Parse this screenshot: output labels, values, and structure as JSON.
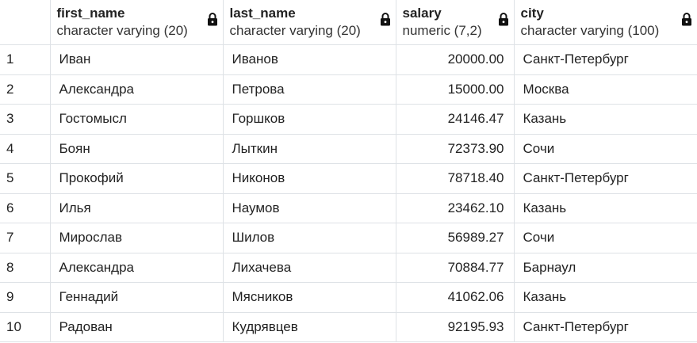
{
  "columns": [
    {
      "name": "first_name",
      "type": "character varying (20)"
    },
    {
      "name": "last_name",
      "type": "character varying (20)"
    },
    {
      "name": "salary",
      "type": "numeric (7,2)"
    },
    {
      "name": "city",
      "type": "character varying (100)"
    }
  ],
  "icons": {
    "column_header": "lock-icon"
  },
  "rows": [
    {
      "n": "1",
      "first_name": "Иван",
      "last_name": "Иванов",
      "salary": "20000.00",
      "city": "Санкт-Петербург"
    },
    {
      "n": "2",
      "first_name": "Александра",
      "last_name": "Петрова",
      "salary": "15000.00",
      "city": "Москва"
    },
    {
      "n": "3",
      "first_name": "Гостомысл",
      "last_name": "Горшков",
      "salary": "24146.47",
      "city": "Казань"
    },
    {
      "n": "4",
      "first_name": "Боян",
      "last_name": "Лыткин",
      "salary": "72373.90",
      "city": "Сочи"
    },
    {
      "n": "5",
      "first_name": "Прокофий",
      "last_name": "Никонов",
      "salary": "78718.40",
      "city": "Санкт-Петербург"
    },
    {
      "n": "6",
      "first_name": "Илья",
      "last_name": "Наумов",
      "salary": "23462.10",
      "city": "Казань"
    },
    {
      "n": "7",
      "first_name": "Мирослав",
      "last_name": "Шилов",
      "salary": "56989.27",
      "city": "Сочи"
    },
    {
      "n": "8",
      "first_name": "Александра",
      "last_name": "Лихачева",
      "salary": "70884.77",
      "city": "Барнаул"
    },
    {
      "n": "9",
      "first_name": "Геннадий",
      "last_name": "Мясников",
      "salary": "41062.06",
      "city": "Казань"
    },
    {
      "n": "10",
      "first_name": "Радован",
      "last_name": "Кудрявцев",
      "salary": "92195.93",
      "city": "Санкт-Петербург"
    }
  ]
}
